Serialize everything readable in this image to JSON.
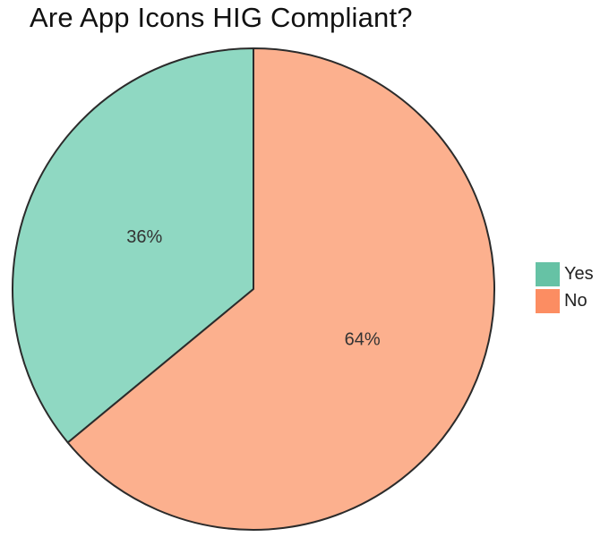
{
  "title": "Are App Icons HIG Compliant?",
  "chart_data": {
    "type": "pie",
    "title": "Are App Icons HIG Compliant?",
    "categories": [
      "Yes",
      "No"
    ],
    "values": [
      36,
      64
    ],
    "labels": [
      "36%",
      "64%"
    ],
    "colors": {
      "Yes": "#8fd8c2",
      "No": "#fcb08e"
    },
    "legend_colors": {
      "Yes": "#66c2a5",
      "No": "#fc8d62"
    },
    "start_angle_deg": 0,
    "direction": "counterclockwise",
    "legend": {
      "position": "right",
      "entries": [
        "Yes",
        "No"
      ]
    }
  }
}
